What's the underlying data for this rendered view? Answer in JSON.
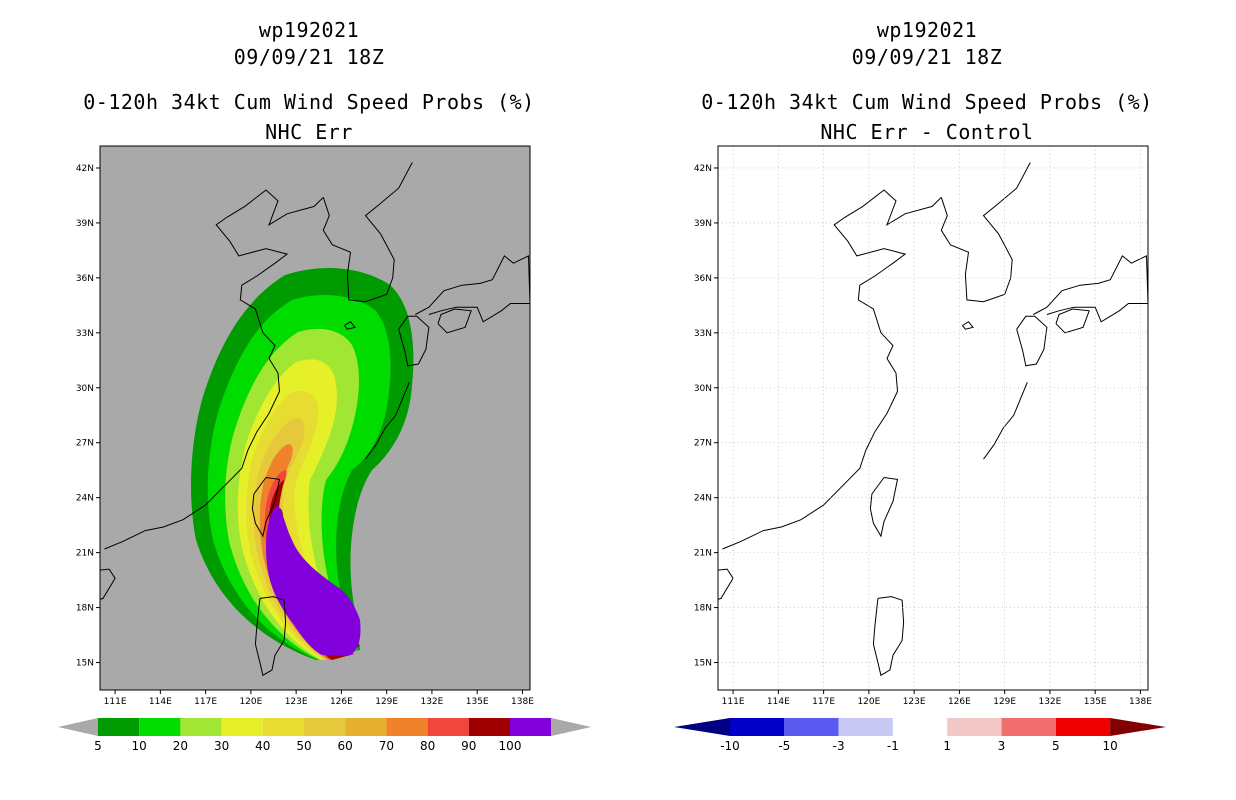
{
  "panels": [
    {
      "storm_id": "wp192021",
      "datetime": "09/09/21 18Z",
      "title": "0-120h 34kt Cum Wind Speed Probs (%)",
      "subtitle": "NHC Err"
    },
    {
      "storm_id": "wp192021",
      "datetime": "09/09/21 18Z",
      "title": "0-120h 34kt Cum Wind Speed Probs (%)",
      "subtitle": "NHC Err - Control"
    }
  ],
  "axes": {
    "lon_labels": [
      "111E",
      "114E",
      "117E",
      "120E",
      "123E",
      "126E",
      "129E",
      "132E",
      "135E",
      "138E"
    ],
    "lat_labels": [
      "15N",
      "18N",
      "21N",
      "24N",
      "27N",
      "30N",
      "33N",
      "36N",
      "39N",
      "42N"
    ]
  },
  "colorbars": {
    "left": {
      "labels": [
        "5",
        "10",
        "20",
        "30",
        "40",
        "50",
        "60",
        "70",
        "80",
        "90",
        "100"
      ],
      "colors": [
        "#009b00",
        "#00dc00",
        "#a0e632",
        "#e6f028",
        "#e6dc32",
        "#e6c83c",
        "#e6af2d",
        "#ef822a",
        "#f0463c",
        "#a00000",
        "#8200dc"
      ],
      "end_color": "#a9a9a9"
    },
    "right": {
      "labels": [
        "-10",
        "-5",
        "-3",
        "-1",
        "1",
        "3",
        "5",
        "10"
      ],
      "colors": [
        "#0000c8",
        "#5a5af0",
        "#c8c8f5",
        "#ffffff",
        "#f5c8c8",
        "#f06e6e",
        "#f00000"
      ],
      "low_color": "#000082",
      "high_color": "#820000"
    }
  },
  "map": {
    "left_background": "#a9a9a9",
    "right_background": "#ffffff",
    "probability_bands": [
      "5",
      "10",
      "20",
      "30",
      "40",
      "50",
      "60",
      "70",
      "80",
      "90",
      "100"
    ]
  }
}
